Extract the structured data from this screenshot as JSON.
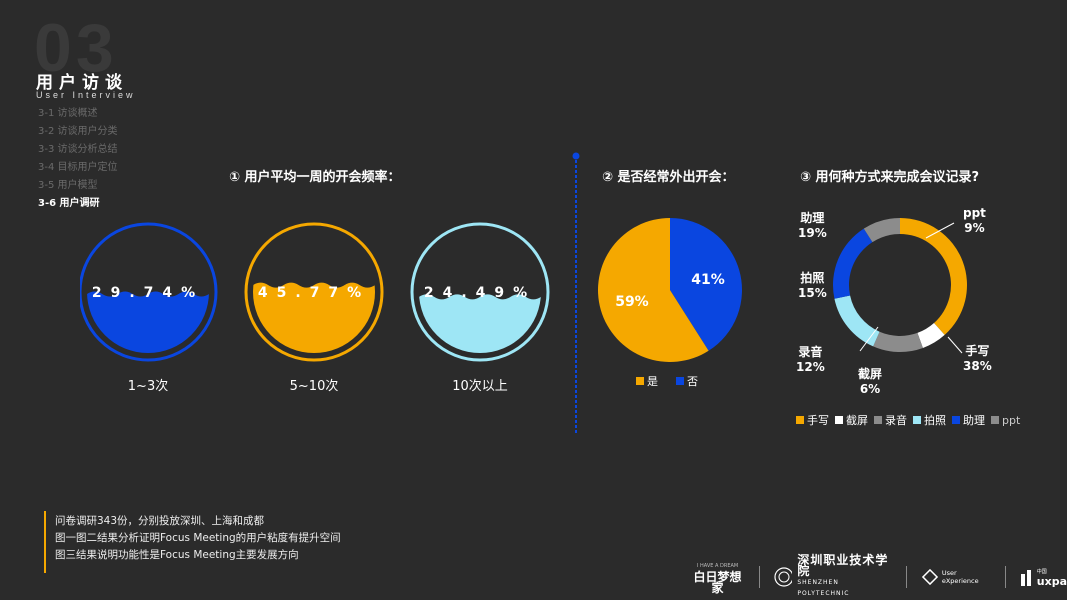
{
  "section": {
    "number": "03",
    "title": "用户访谈",
    "subtitle": "User Interview"
  },
  "nav": [
    {
      "label": "3-1 访谈概述",
      "active": false
    },
    {
      "label": "3-2 访谈用户分类",
      "active": false
    },
    {
      "label": "3-3 访谈分析总结",
      "active": false
    },
    {
      "label": "3-4 目标用户定位",
      "active": false
    },
    {
      "label": "3-5 用户模型",
      "active": false
    },
    {
      "label": "3-6 用户调研",
      "active": true
    }
  ],
  "chart1": {
    "title": "① 用户平均一周的开会频率：",
    "bubbles": [
      {
        "percent": "29.74%",
        "fraction": 0.2974,
        "label": "1~3次",
        "color": "#0a46e0"
      },
      {
        "percent": "45.77%",
        "fraction": 0.4577,
        "label": "5~10次",
        "color": "#f5a800"
      },
      {
        "percent": "24.49%",
        "fraction": 0.2449,
        "label": "10次以上",
        "color": "#9ee6f5"
      }
    ]
  },
  "chart_data": [
    {
      "type": "pie",
      "title": "② 是否经常外出开会：",
      "categories": [
        "是",
        "否"
      ],
      "values": [
        59,
        41
      ],
      "labels": [
        "59%",
        "41%"
      ],
      "colors": [
        "#f5a800",
        "#0a46e0"
      ],
      "legend": "bottom"
    },
    {
      "type": "pie",
      "subtype": "donut",
      "title": "③ 用何种方式来完成会议记录?",
      "categories": [
        "手写",
        "截屏",
        "录音",
        "拍照",
        "助理",
        "ppt"
      ],
      "values": [
        38,
        6,
        12,
        15,
        19,
        9
      ],
      "labels": [
        "38%",
        "6%",
        "12%",
        "15%",
        "19%",
        "9%"
      ],
      "colors": [
        "#f5a800",
        "#ffffff",
        "#8c8c8c",
        "#9ee6f5",
        "#0a46e0",
        "#8c8c8c"
      ],
      "legend": "bottom"
    }
  ],
  "notes": [
    "问卷调研343份，分别投放深圳、上海和成都",
    "图一图二结果分析证明Focus Meeting的用户粘度有提升空间",
    "图三结果说明功能性是Focus Meeting主要发展方向"
  ],
  "footer": {
    "logo1": "白日梦想家",
    "logo1_small": "I HAVE A DREAM",
    "logo2": "深圳职业技术学院",
    "logo2_en": "SHENZHEN POLYTECHNIC",
    "logo3": "User eXperience",
    "logo4": "uxpa",
    "logo4_small": "中国"
  }
}
